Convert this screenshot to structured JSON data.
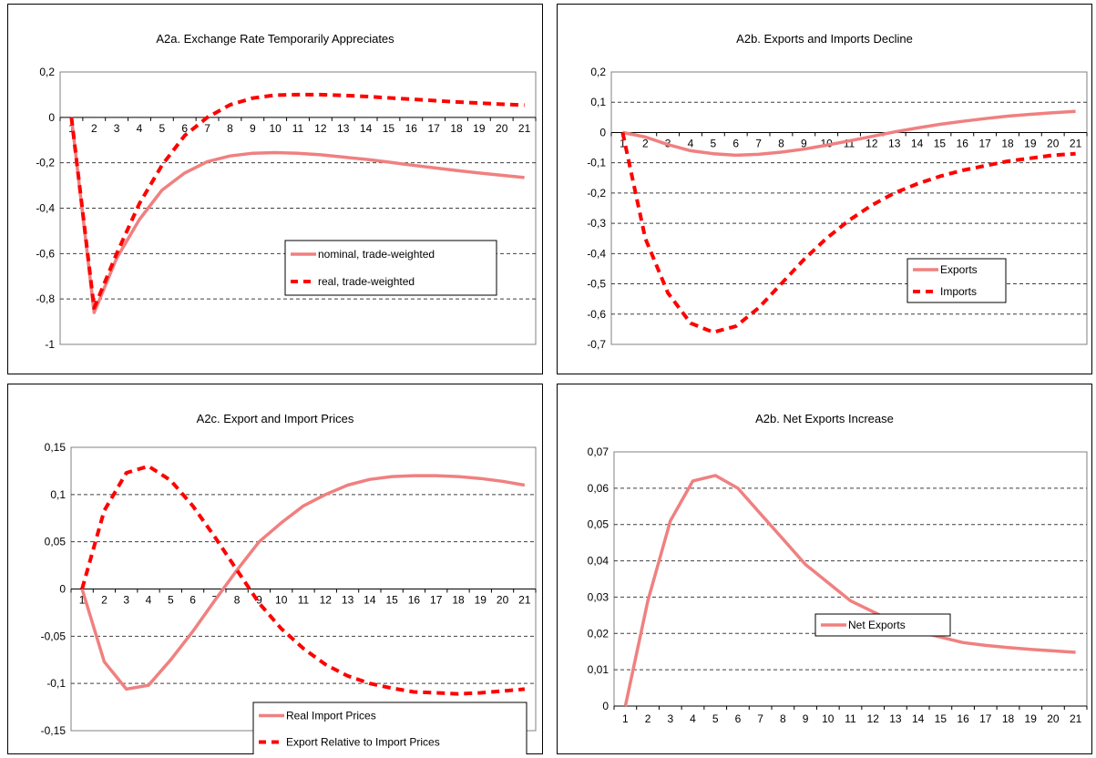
{
  "chart_data": [
    {
      "id": "a2a",
      "type": "line",
      "title": "A2a. Exchange Rate Temporarily Appreciates",
      "x": [
        1,
        2,
        3,
        4,
        5,
        6,
        7,
        8,
        9,
        10,
        11,
        12,
        13,
        14,
        15,
        16,
        17,
        18,
        19,
        20,
        21
      ],
      "ylim": [
        -1,
        0.2
      ],
      "yticks": [
        0.2,
        0,
        -0.2,
        -0.4,
        -0.6,
        -0.8,
        -1
      ],
      "ytick_labels": [
        "0,2",
        "0",
        "-0,2",
        "-0,4",
        "-0,6",
        "-0,8",
        "-1"
      ],
      "grid": "horizontal dashed",
      "legend_position": "middle-right",
      "series": [
        {
          "name": "nominal, trade-weighted",
          "style": "solid",
          "color": "#F08080",
          "values": [
            0,
            -0.86,
            -0.62,
            -0.45,
            -0.32,
            -0.245,
            -0.195,
            -0.17,
            -0.158,
            -0.155,
            -0.158,
            -0.165,
            -0.175,
            -0.185,
            -0.197,
            -0.21,
            -0.222,
            -0.234,
            -0.245,
            -0.255,
            -0.265
          ]
        },
        {
          "name": "real, trade-weighted",
          "style": "dashed",
          "color": "#FF0000",
          "values": [
            0,
            -0.84,
            -0.6,
            -0.38,
            -0.21,
            -0.08,
            0.0,
            0.055,
            0.085,
            0.098,
            0.1,
            0.1,
            0.097,
            0.092,
            0.086,
            0.08,
            0.074,
            0.068,
            0.063,
            0.058,
            0.054
          ]
        }
      ]
    },
    {
      "id": "a2b",
      "type": "line",
      "title": "A2b. Exports and Imports  Decline",
      "x": [
        1,
        2,
        3,
        4,
        5,
        6,
        7,
        8,
        9,
        10,
        11,
        12,
        13,
        14,
        15,
        16,
        17,
        18,
        19,
        20,
        21
      ],
      "ylim": [
        -0.7,
        0.2
      ],
      "yticks": [
        0.2,
        0.1,
        0,
        -0.1,
        -0.2,
        -0.3,
        -0.4,
        -0.5,
        -0.6,
        -0.7
      ],
      "ytick_labels": [
        "0,2",
        "0,1",
        "0",
        "-0,1",
        "-0,2",
        "-0,3",
        "-0,4",
        "-0,5",
        "-0,6",
        "-0,7"
      ],
      "grid": "horizontal dashed",
      "legend_position": "lower-right",
      "series": [
        {
          "name": "Exports",
          "style": "solid",
          "color": "#F08080",
          "values": [
            0,
            -0.015,
            -0.04,
            -0.06,
            -0.07,
            -0.075,
            -0.072,
            -0.065,
            -0.055,
            -0.042,
            -0.028,
            -0.013,
            0.002,
            0.015,
            0.027,
            0.037,
            0.046,
            0.054,
            0.06,
            0.065,
            0.07
          ]
        },
        {
          "name": "Imports",
          "style": "dashed",
          "color": "#FF0000",
          "values": [
            0,
            -0.35,
            -0.53,
            -0.63,
            -0.66,
            -0.64,
            -0.58,
            -0.5,
            -0.42,
            -0.35,
            -0.29,
            -0.24,
            -0.2,
            -0.17,
            -0.145,
            -0.125,
            -0.11,
            -0.095,
            -0.085,
            -0.075,
            -0.07
          ]
        }
      ]
    },
    {
      "id": "a2c",
      "type": "line",
      "title": "A2c. Export and Import Prices",
      "x": [
        1,
        2,
        3,
        4,
        5,
        6,
        7,
        8,
        9,
        10,
        11,
        12,
        13,
        14,
        15,
        16,
        17,
        18,
        19,
        20,
        21
      ],
      "ylim": [
        -0.15,
        0.15
      ],
      "yticks": [
        0.15,
        0.1,
        0.05,
        0,
        -0.05,
        -0.1,
        -0.15
      ],
      "ytick_labels": [
        "0,15",
        "0,1",
        "0,05",
        "0",
        "-0,05",
        "-0,1",
        "-0,15"
      ],
      "grid": "horizontal dashed",
      "legend_position": "bottom-right",
      "series": [
        {
          "name": "Real Import Prices",
          "style": "solid",
          "color": "#F08080",
          "values": [
            0,
            -0.077,
            -0.106,
            -0.102,
            -0.075,
            -0.045,
            -0.012,
            0.02,
            0.05,
            0.07,
            0.088,
            0.1,
            0.11,
            0.116,
            0.119,
            0.12,
            0.12,
            0.119,
            0.117,
            0.114,
            0.11
          ]
        },
        {
          "name": "Export Relative to Import Prices",
          "style": "dashed",
          "color": "#FF0000",
          "values": [
            0,
            0.083,
            0.123,
            0.13,
            0.115,
            0.088,
            0.055,
            0.02,
            -0.015,
            -0.042,
            -0.063,
            -0.08,
            -0.092,
            -0.1,
            -0.105,
            -0.109,
            -0.11,
            -0.111,
            -0.11,
            -0.108,
            -0.106
          ]
        }
      ]
    },
    {
      "id": "a2d",
      "type": "line",
      "title": "A2b. Net Exports Increase",
      "x": [
        1,
        2,
        3,
        4,
        5,
        6,
        7,
        8,
        9,
        10,
        11,
        12,
        13,
        14,
        15,
        16,
        17,
        18,
        19,
        20,
        21
      ],
      "ylim": [
        0,
        0.07
      ],
      "yticks": [
        0.07,
        0.06,
        0.05,
        0.04,
        0.03,
        0.02,
        0.01,
        0
      ],
      "ytick_labels": [
        "0,07",
        "0,06",
        "0,05",
        "0,04",
        "0,03",
        "0,02",
        "0,01",
        "0"
      ],
      "grid": "horizontal dashed",
      "legend_position": "center-right",
      "series": [
        {
          "name": "Net Exports",
          "style": "solid",
          "color": "#F08080",
          "values": [
            0,
            0.029,
            0.051,
            0.062,
            0.0635,
            0.06,
            0.053,
            0.046,
            0.039,
            0.034,
            0.029,
            0.026,
            0.023,
            0.0205,
            0.019,
            0.0175,
            0.0167,
            0.0161,
            0.0156,
            0.0152,
            0.0148
          ]
        }
      ]
    }
  ]
}
